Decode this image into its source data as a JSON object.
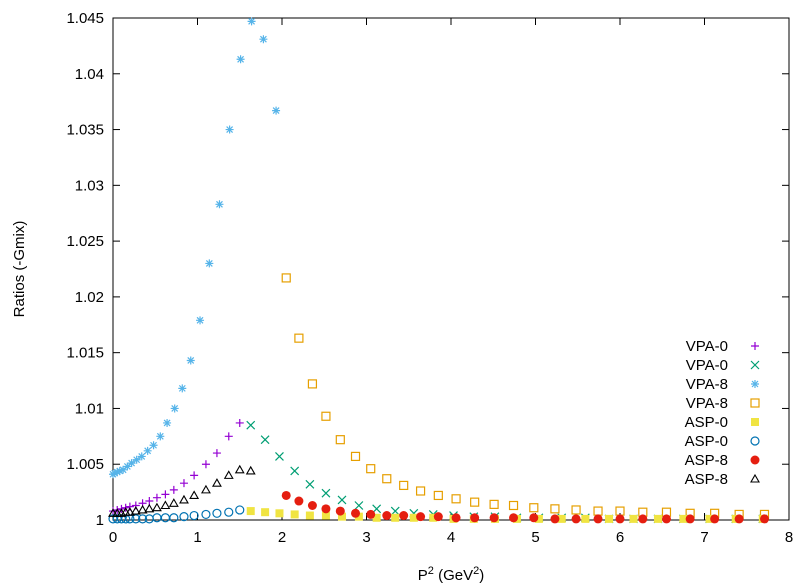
{
  "chart_data": {
    "type": "scatter",
    "xlabel_base": "P",
    "xlabel_sup1": "2",
    "xlabel_mid": " (GeV",
    "xlabel_sup2": "2",
    "xlabel_end": ")",
    "ylabel": "Ratios  (-Gmix)",
    "xlim": [
      0,
      8
    ],
    "ylim": [
      1,
      1.045
    ],
    "xticks": [
      0,
      1,
      2,
      3,
      4,
      5,
      6,
      7,
      8
    ],
    "yticks": [
      1,
      1.005,
      1.01,
      1.015,
      1.02,
      1.025,
      1.03,
      1.035,
      1.04,
      1.045
    ],
    "ytick_labels": [
      "1",
      "1.005",
      "1.01",
      "1.015",
      "1.02",
      "1.025",
      "1.03",
      "1.035",
      "1.04",
      "1.045"
    ],
    "legend_position": "bottom-right",
    "series": [
      {
        "name": "VPA-0",
        "marker": "plus",
        "color": "#9400d3",
        "x": [
          0.0,
          0.05,
          0.1,
          0.15,
          0.2,
          0.27,
          0.35,
          0.43,
          0.52,
          0.62,
          0.72,
          0.84,
          0.96,
          1.1,
          1.23,
          1.37,
          1.5
        ],
        "y": [
          1.0008,
          1.0009,
          1.001,
          1.0011,
          1.0012,
          1.0013,
          1.0015,
          1.0017,
          1.002,
          1.0023,
          1.0027,
          1.0033,
          1.004,
          1.005,
          1.006,
          1.0075,
          1.0087
        ]
      },
      {
        "name": "VPA-0",
        "marker": "cross",
        "color": "#009e73",
        "x": [
          1.63,
          1.8,
          1.97,
          2.15,
          2.33,
          2.52,
          2.71,
          2.91,
          3.12,
          3.34,
          3.56,
          3.79,
          4.03,
          4.27,
          4.52,
          4.78,
          5.04,
          5.31,
          5.59,
          5.87,
          6.16,
          6.45,
          6.75,
          7.06,
          7.37,
          7.69
        ],
        "y": [
          1.0085,
          1.0072,
          1.0057,
          1.0044,
          1.0032,
          1.0024,
          1.0018,
          1.0013,
          1.001,
          1.0008,
          1.0006,
          1.0005,
          1.0004,
          1.0003,
          1.0003,
          1.0002,
          1.0002,
          1.0002,
          1.0002,
          1.0001,
          1.0001,
          1.0001,
          1.0001,
          1.0001,
          1.0001,
          1.0001
        ]
      },
      {
        "name": "VPA-8",
        "marker": "star",
        "color": "#56b4e9",
        "x": [
          0.0,
          0.02,
          0.05,
          0.08,
          0.12,
          0.17,
          0.22,
          0.28,
          0.34,
          0.41,
          0.48,
          0.56,
          0.64,
          0.73,
          0.82,
          0.92,
          1.03,
          1.14,
          1.26,
          1.38,
          1.51,
          1.64,
          1.78,
          1.93
        ],
        "y": [
          1.0041,
          1.0042,
          1.0043,
          1.0044,
          1.0045,
          1.0048,
          1.0051,
          1.0054,
          1.0057,
          1.0062,
          1.0067,
          1.0075,
          1.0087,
          1.01,
          1.0118,
          1.0143,
          1.0179,
          1.023,
          1.0283,
          1.035,
          1.0413,
          1.0447,
          1.0431,
          1.0367
        ]
      },
      {
        "name": "VPA-8",
        "marker": "square-open",
        "color": "#e69f00",
        "x": [
          2.05,
          2.2,
          2.36,
          2.52,
          2.69,
          2.87,
          3.05,
          3.24,
          3.44,
          3.64,
          3.85,
          4.06,
          4.28,
          4.51,
          4.74,
          4.98,
          5.23,
          5.48,
          5.74,
          6.0,
          6.27,
          6.55,
          6.83,
          7.12,
          7.41,
          7.71
        ],
        "y": [
          1.0217,
          1.0163,
          1.0122,
          1.0093,
          1.0072,
          1.0057,
          1.0046,
          1.0037,
          1.0031,
          1.0026,
          1.0022,
          1.0019,
          1.0016,
          1.0014,
          1.0013,
          1.0011,
          1.001,
          1.0009,
          1.0008,
          1.0008,
          1.0007,
          1.0007,
          1.0006,
          1.0006,
          1.0005,
          1.0005
        ]
      },
      {
        "name": "ASP-0",
        "marker": "square-filled",
        "color": "#f0e442",
        "x": [
          1.63,
          1.8,
          1.97,
          2.15,
          2.33,
          2.52,
          2.71,
          2.91,
          3.12,
          3.34,
          3.56,
          3.79,
          4.03,
          4.27,
          4.52,
          4.78,
          5.04,
          5.31,
          5.59,
          5.87,
          6.16,
          6.45,
          6.75,
          7.06,
          7.37,
          7.69
        ],
        "y": [
          1.0008,
          1.0007,
          1.0006,
          1.0005,
          1.0004,
          1.0004,
          1.0003,
          1.0003,
          1.0002,
          1.0002,
          1.0002,
          1.0002,
          1.0001,
          1.0001,
          1.0001,
          1.0001,
          1.0001,
          1.0001,
          1.0001,
          1.0001,
          1.0001,
          1.0001,
          1.0001,
          1.0001,
          1.0001,
          1.0001
        ]
      },
      {
        "name": "ASP-0",
        "marker": "circle-open",
        "color": "#0072b2",
        "x": [
          0.0,
          0.05,
          0.1,
          0.15,
          0.2,
          0.27,
          0.35,
          0.43,
          0.52,
          0.62,
          0.72,
          0.84,
          0.96,
          1.1,
          1.23,
          1.37,
          1.5
        ],
        "y": [
          1.0001,
          1.0001,
          1.0001,
          1.0001,
          1.0001,
          1.0001,
          1.0001,
          1.0001,
          1.0002,
          1.0002,
          1.0002,
          1.0003,
          1.0004,
          1.0005,
          1.0006,
          1.0007,
          1.0009
        ]
      },
      {
        "name": "ASP-8",
        "marker": "circle-filled",
        "color": "#e51e10",
        "x": [
          2.05,
          2.2,
          2.36,
          2.52,
          2.69,
          2.87,
          3.05,
          3.24,
          3.44,
          3.64,
          3.85,
          4.06,
          4.28,
          4.51,
          4.74,
          4.98,
          5.23,
          5.48,
          5.74,
          6.0,
          6.27,
          6.55,
          6.83,
          7.12,
          7.41,
          7.71
        ],
        "y": [
          1.0022,
          1.0017,
          1.0013,
          1.001,
          1.0008,
          1.0006,
          1.0005,
          1.0004,
          1.0004,
          1.0003,
          1.0003,
          1.0002,
          1.0002,
          1.0002,
          1.0002,
          1.0002,
          1.0001,
          1.0001,
          1.0001,
          1.0001,
          1.0001,
          1.0001,
          1.0001,
          1.0001,
          1.0001,
          1.0001
        ]
      },
      {
        "name": "ASP-8",
        "marker": "triangle-open",
        "color": "#000000",
        "x": [
          0.0,
          0.05,
          0.1,
          0.15,
          0.2,
          0.27,
          0.35,
          0.43,
          0.52,
          0.62,
          0.72,
          0.84,
          0.96,
          1.1,
          1.23,
          1.37,
          1.5,
          1.63
        ],
        "y": [
          1.0006,
          1.0006,
          1.0006,
          1.0007,
          1.0007,
          1.0008,
          1.0009,
          1.001,
          1.0011,
          1.0013,
          1.0015,
          1.0018,
          1.0022,
          1.0027,
          1.0033,
          1.004,
          1.0045,
          1.0044
        ]
      }
    ]
  }
}
